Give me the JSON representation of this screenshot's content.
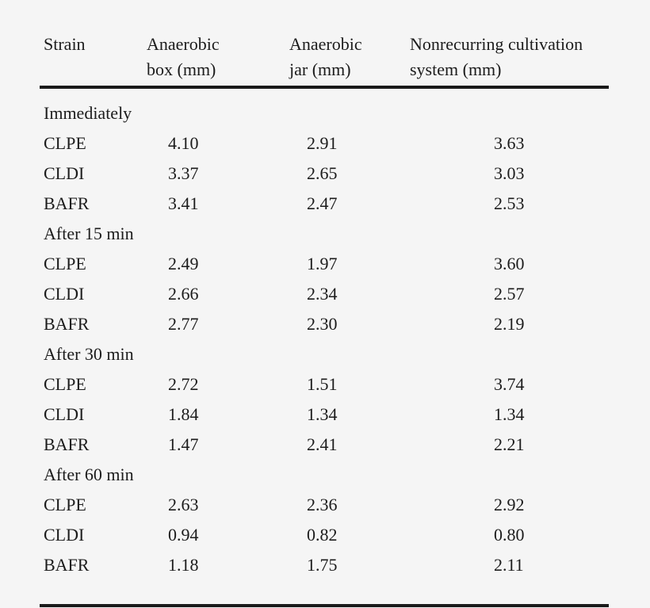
{
  "colors": {
    "background": "#f5f5f5",
    "text": "#1c1c1c",
    "rule": "#1a1a1a"
  },
  "chart_data": {
    "type": "table",
    "unit": "mm",
    "columns": [
      "Strain",
      "Anaerobic box (mm)",
      "Anaerobic jar (mm)",
      "Nonrecurring cultivation system (mm)"
    ],
    "header": {
      "col1": "Strain",
      "col2": {
        "line1": "Anaerobic",
        "line2": "box (mm)"
      },
      "col3": {
        "line1": "Anaerobic",
        "line2": "jar (mm)"
      },
      "col4": {
        "line1": "Nonrecurring cultivation",
        "line2": "system (mm)"
      }
    },
    "sections": [
      {
        "label": "Immediately",
        "rows": [
          {
            "strain": "CLPE",
            "box": "4.10",
            "jar": "2.91",
            "system": "3.63"
          },
          {
            "strain": "CLDI",
            "box": "3.37",
            "jar": "2.65",
            "system": "3.03"
          },
          {
            "strain": "BAFR",
            "box": "3.41",
            "jar": "2.47",
            "system": "2.53"
          }
        ]
      },
      {
        "label": "After 15 min",
        "rows": [
          {
            "strain": "CLPE",
            "box": "2.49",
            "jar": "1.97",
            "system": "3.60"
          },
          {
            "strain": "CLDI",
            "box": "2.66",
            "jar": "2.34",
            "system": "2.57"
          },
          {
            "strain": "BAFR",
            "box": "2.77",
            "jar": "2.30",
            "system": "2.19"
          }
        ]
      },
      {
        "label": "After 30 min",
        "rows": [
          {
            "strain": "CLPE",
            "box": "2.72",
            "jar": "1.51",
            "system": "3.74"
          },
          {
            "strain": "CLDI",
            "box": "1.84",
            "jar": "1.34",
            "system": "1.34"
          },
          {
            "strain": "BAFR",
            "box": "1.47",
            "jar": "2.41",
            "system": "2.21"
          }
        ]
      },
      {
        "label": "After 60 min",
        "rows": [
          {
            "strain": "CLPE",
            "box": "2.63",
            "jar": "2.36",
            "system": "2.92"
          },
          {
            "strain": "CLDI",
            "box": "0.94",
            "jar": "0.82",
            "system": "0.80"
          },
          {
            "strain": "BAFR",
            "box": "1.18",
            "jar": "1.75",
            "system": "2.11"
          }
        ]
      }
    ]
  }
}
